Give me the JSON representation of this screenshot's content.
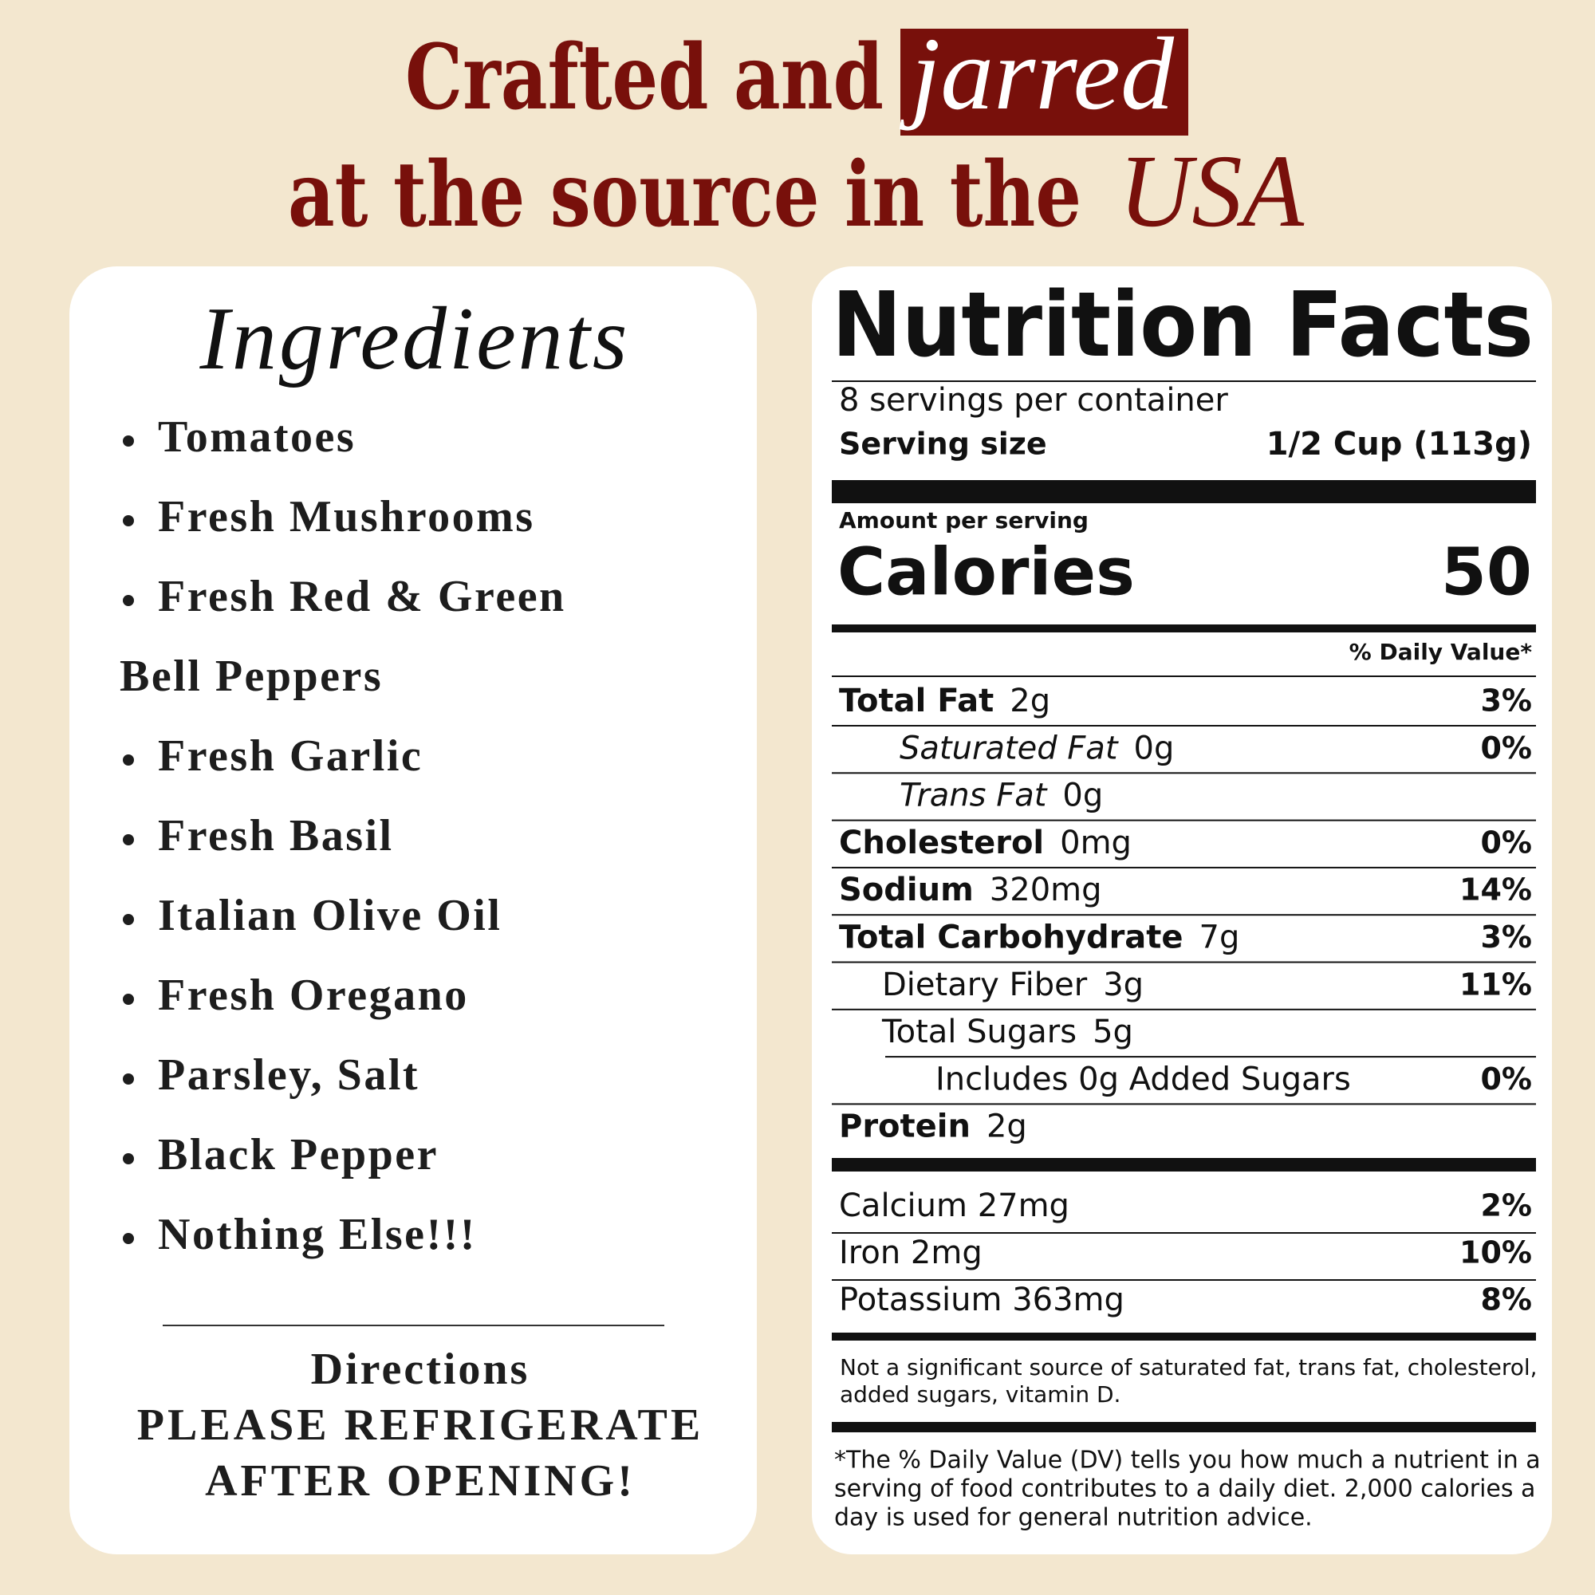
{
  "header": {
    "line1": [
      "Crafted and",
      "jarred"
    ],
    "line2": [
      "at the source in the",
      "USA"
    ]
  },
  "ingredients": {
    "title": "Ingredients",
    "items": [
      [
        "Tomatoes"
      ],
      [
        "Fresh Mushrooms"
      ],
      [
        "Fresh Red & Green",
        "Bell Peppers"
      ],
      [
        "Fresh Garlic"
      ],
      [
        "Fresh Basil"
      ],
      [
        "Italian Olive Oil"
      ],
      [
        "Fresh Oregano"
      ],
      [
        "Parsley, Salt"
      ],
      [
        "Black Pepper"
      ],
      [
        "Nothing Else!!!"
      ]
    ],
    "directions": {
      "title": "Directions",
      "lines": [
        "PLEASE REFRIGERATE",
        "AFTER OPENING!"
      ]
    }
  },
  "nutrition": {
    "title": "Nutrition Facts",
    "servings": "8 servings per container",
    "serving_size_label": "Serving size",
    "serving_size": "1/2 Cup (113g)",
    "amount_per_serving": "Amount per serving",
    "calories_label": "Calories",
    "calories": 50,
    "dv_header": "% Daily Value*",
    "rows": [
      {
        "name": "Total Fat",
        "amount": "2g",
        "dv": "3%",
        "style": "main"
      },
      {
        "name": "Saturated Fat",
        "amount": "0g",
        "dv": "0%",
        "style": "sub-italic"
      },
      {
        "name": "Trans Fat",
        "amount": "0g",
        "style": "sub-italic"
      },
      {
        "name": "Cholesterol",
        "amount": "0mg",
        "dv": "0%",
        "style": "main"
      },
      {
        "name": "Sodium",
        "amount": "320mg",
        "dv": "14%",
        "style": "main"
      },
      {
        "name": "Total Carbohydrate",
        "amount": "7g",
        "dv": "3%",
        "style": "main"
      },
      {
        "name": "Dietary Fiber",
        "amount": "3g",
        "dv": "11%",
        "style": "sub"
      },
      {
        "name": "Total Sugars",
        "amount": "5g",
        "style": "sub"
      },
      {
        "name": "Includes 0g Added Sugars",
        "dv": "0%",
        "style": "subsub"
      },
      {
        "name": "Protein",
        "amount": "2g",
        "style": "main"
      }
    ],
    "minerals": [
      {
        "text": "Calcium 27mg",
        "dv": "2%"
      },
      {
        "text": "Iron 2mg",
        "dv": "10%"
      },
      {
        "text": "Potassium 363mg",
        "dv": "8%"
      }
    ],
    "note": [
      "Not a significant source of saturated fat, trans fat, cholesterol,",
      "added sugars, vitamin D."
    ],
    "footnote": [
      "*The % Daily Value (DV) tells you how much a nutrient in a",
      "serving of food contributes to a daily diet. 2,000 calories a",
      "day is used for general nutrition advice."
    ]
  }
}
